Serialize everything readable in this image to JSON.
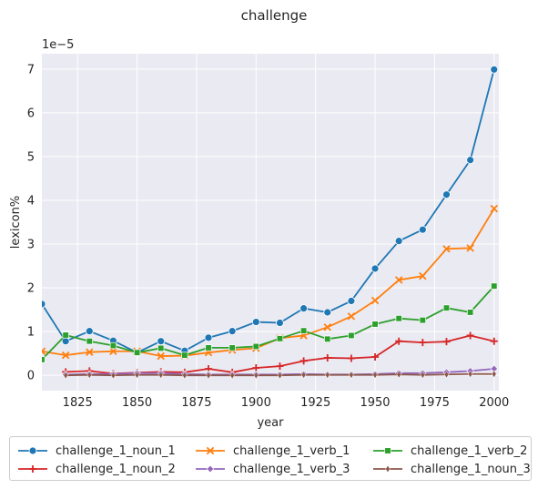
{
  "chart_data": {
    "type": "line",
    "title": "challenge",
    "xlabel": "year",
    "ylabel": "lexicon%",
    "offset_text": "1e−5",
    "xlim": [
      1810,
      2002
    ],
    "ylim": [
      -0.35,
      7.35
    ],
    "xticks": [
      1825,
      1850,
      1875,
      1900,
      1925,
      1950,
      1975,
      2000
    ],
    "yticks": [
      0,
      1,
      2,
      3,
      4,
      5,
      6,
      7
    ],
    "grid": true,
    "background": "#eaeaf2",
    "legend_position": "bottom",
    "series": [
      {
        "name": "challenge_1_noun_1",
        "color": "#1f77b4",
        "marker": "circle",
        "x": [
          1810,
          1820,
          1830,
          1840,
          1850,
          1860,
          1870,
          1880,
          1890,
          1900,
          1910,
          1920,
          1930,
          1940,
          1950,
          1960,
          1970,
          1980,
          1990,
          2000
        ],
        "y": [
          1.63,
          0.78,
          1.01,
          0.79,
          0.52,
          0.78,
          0.56,
          0.86,
          1.01,
          1.22,
          1.2,
          1.53,
          1.44,
          1.7,
          2.44,
          3.07,
          3.33,
          4.13,
          4.92,
          6.99
        ]
      },
      {
        "name": "challenge_1_verb_1",
        "color": "#ff7f0e",
        "marker": "x",
        "x": [
          1810,
          1820,
          1830,
          1840,
          1850,
          1860,
          1870,
          1880,
          1890,
          1900,
          1910,
          1920,
          1930,
          1940,
          1950,
          1960,
          1970,
          1980,
          1990,
          2000
        ],
        "y": [
          0.55,
          0.46,
          0.53,
          0.55,
          0.55,
          0.44,
          0.45,
          0.52,
          0.58,
          0.62,
          0.85,
          0.91,
          1.1,
          1.35,
          1.71,
          2.18,
          2.27,
          2.89,
          2.91,
          3.81
        ]
      },
      {
        "name": "challenge_1_verb_2",
        "color": "#2ca02c",
        "marker": "square",
        "x": [
          1810,
          1820,
          1830,
          1840,
          1850,
          1860,
          1870,
          1880,
          1890,
          1900,
          1910,
          1920,
          1930,
          1940,
          1950,
          1960,
          1970,
          1980,
          1990,
          2000
        ],
        "y": [
          0.36,
          0.92,
          0.78,
          0.68,
          0.52,
          0.62,
          0.46,
          0.63,
          0.63,
          0.66,
          0.84,
          1.02,
          0.83,
          0.91,
          1.17,
          1.3,
          1.26,
          1.54,
          1.44,
          2.04
        ]
      },
      {
        "name": "challenge_1_noun_2",
        "color": "#d62728",
        "marker": "plus",
        "x": [
          1820,
          1830,
          1840,
          1850,
          1860,
          1870,
          1880,
          1890,
          1900,
          1910,
          1920,
          1930,
          1940,
          1950,
          1960,
          1970,
          1980,
          1990,
          2000
        ],
        "y": [
          0.08,
          0.1,
          0.04,
          0.06,
          0.08,
          0.07,
          0.15,
          0.07,
          0.17,
          0.21,
          0.33,
          0.4,
          0.39,
          0.42,
          0.78,
          0.75,
          0.77,
          0.91,
          0.78
        ]
      },
      {
        "name": "challenge_1_verb_3",
        "color": "#9467bd",
        "marker": "diamond",
        "x": [
          1820,
          1830,
          1840,
          1850,
          1860,
          1870,
          1880,
          1890,
          1900,
          1910,
          1920,
          1930,
          1940,
          1950,
          1960,
          1970,
          1980,
          1990,
          2000
        ],
        "y": [
          0.02,
          0.03,
          0.03,
          0.05,
          0.05,
          0.03,
          0.02,
          0.02,
          0.02,
          0.02,
          0.03,
          0.02,
          0.02,
          0.03,
          0.05,
          0.05,
          0.07,
          0.1,
          0.15
        ]
      },
      {
        "name": "challenge_1_noun_3",
        "color": "#8c564b",
        "marker": "thin_diamond",
        "x": [
          1820,
          1830,
          1840,
          1850,
          1860,
          1870,
          1880,
          1890,
          1900,
          1910,
          1920,
          1930,
          1940,
          1950,
          1960,
          1970,
          1980,
          1990,
          2000
        ],
        "y": [
          0.0,
          0.01,
          0.0,
          0.01,
          0.01,
          0.0,
          0.0,
          0.0,
          0.0,
          0.0,
          0.01,
          0.01,
          0.01,
          0.01,
          0.02,
          0.01,
          0.02,
          0.03,
          0.03
        ]
      }
    ]
  }
}
